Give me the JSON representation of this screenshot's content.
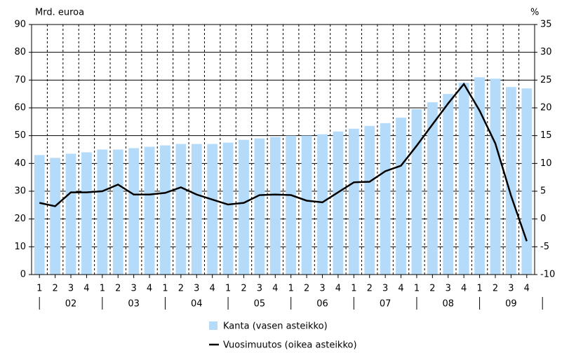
{
  "chart_data": {
    "type": "bar_line",
    "y_label": "Mrd. euroa",
    "y2_label": "%",
    "categories": [
      "1",
      "2",
      "3",
      "4",
      "1",
      "2",
      "3",
      "4",
      "1",
      "2",
      "3",
      "4",
      "1",
      "2",
      "3",
      "4",
      "1",
      "2",
      "3",
      "4",
      "1",
      "2",
      "3",
      "4",
      "1",
      "2",
      "3",
      "4",
      "1",
      "2",
      "3",
      "4"
    ],
    "groups": [
      "02",
      "03",
      "04",
      "05",
      "06",
      "07",
      "08",
      "09"
    ],
    "series": [
      {
        "name": "Kanta (vasen asteikko)",
        "type": "bar",
        "color": "#b4dbf9",
        "values": [
          43,
          42,
          43.5,
          44,
          45,
          45,
          45.5,
          46,
          46.5,
          47,
          47,
          47,
          47.5,
          48.5,
          49,
          49.5,
          50,
          50,
          50.5,
          51.5,
          52.5,
          53.5,
          54.5,
          56.5,
          59.5,
          62,
          65,
          69,
          71,
          70.5,
          67.5,
          67
        ]
      },
      {
        "name": "Vuosimuutos (oikea asteikko)",
        "type": "line",
        "axis": "y2",
        "color": "#000000",
        "values": [
          2.9,
          2.3,
          4.8,
          4.8,
          5,
          6.2,
          4.4,
          4.4,
          4.7,
          5.7,
          4.4,
          3.5,
          2.6,
          2.9,
          4.3,
          4.4,
          4.3,
          3.3,
          3,
          4.8,
          6.6,
          6.7,
          8.6,
          9.6,
          13.2,
          17,
          20.8,
          24.3,
          19.5,
          13.6,
          4.2,
          -4
        ]
      }
    ],
    "ylim": [
      0,
      90
    ],
    "yticks": [
      0,
      10,
      20,
      30,
      40,
      50,
      60,
      70,
      80,
      90
    ],
    "y2lim": [
      -10,
      35
    ],
    "y2ticks": [
      -10,
      -5,
      0,
      5,
      10,
      15,
      20,
      25,
      30,
      35
    ],
    "grid": true,
    "legend": "bottom"
  }
}
